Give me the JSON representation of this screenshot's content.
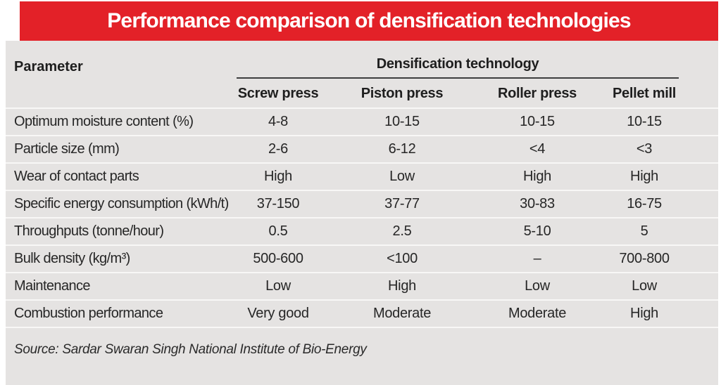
{
  "banner": {
    "title": "Performance comparison of densification technologies"
  },
  "table": {
    "param_header": "Parameter",
    "group_header": "Densification technology",
    "columns": [
      "Screw press",
      "Piston press",
      "Roller press",
      "Pellet mill"
    ],
    "rows": [
      {
        "param": "Optimum moisture content (%)",
        "values": [
          "4-8",
          "10-15",
          "10-15",
          "10-15"
        ]
      },
      {
        "param": "Particle size (mm)",
        "values": [
          "2-6",
          "6-12",
          "<4",
          "<3"
        ]
      },
      {
        "param": "Wear of contact parts",
        "values": [
          "High",
          "Low",
          "High",
          "High"
        ]
      },
      {
        "param": "Specific energy consumption (kWh/t)",
        "values": [
          "37-150",
          "37-77",
          "30-83",
          "16-75"
        ]
      },
      {
        "param": "Throughputs (tonne/hour)",
        "values": [
          "0.5",
          "2.5",
          "5-10",
          "5"
        ]
      },
      {
        "param": "Bulk density (kg/m³)",
        "values": [
          "500-600",
          "<100",
          "–",
          "700-800"
        ]
      },
      {
        "param": "Maintenance",
        "values": [
          "Low",
          "High",
          "Low",
          "Low"
        ]
      },
      {
        "param": "Combustion performance",
        "values": [
          "Very good",
          "Moderate",
          "Moderate",
          "High"
        ]
      }
    ]
  },
  "source": "Source: Sardar Swaran Singh National Institute of Bio-Energy",
  "colors": {
    "banner_red": "#e32128",
    "panel_gray": "#e5e3e2",
    "title_text": "#ffffff",
    "body_text": "#262626",
    "dark_rule": "#3e3e3e",
    "row_separator": "#f8f7f6"
  },
  "chart_data": {
    "type": "table",
    "title": "Performance comparison of densification technologies",
    "columns": [
      "Parameter",
      "Screw press",
      "Piston press",
      "Roller press",
      "Pellet mill"
    ],
    "rows": [
      [
        "Optimum moisture content (%)",
        "4-8",
        "10-15",
        "10-15",
        "10-15"
      ],
      [
        "Particle size (mm)",
        "2-6",
        "6-12",
        "<4",
        "<3"
      ],
      [
        "Wear of contact parts",
        "High",
        "Low",
        "High",
        "High"
      ],
      [
        "Specific energy consumption (kWh/t)",
        "37-150",
        "37-77",
        "30-83",
        "16-75"
      ],
      [
        "Throughputs (tonne/hour)",
        "0.5",
        "2.5",
        "5-10",
        "5"
      ],
      [
        "Bulk density (kg/m³)",
        "500-600",
        "<100",
        "–",
        "700-800"
      ],
      [
        "Maintenance",
        "Low",
        "High",
        "Low",
        "Low"
      ],
      [
        "Combustion performance",
        "Very good",
        "Moderate",
        "Moderate",
        "High"
      ]
    ],
    "group_header": "Densification technology",
    "source": "Source: Sardar Swaran Singh National Institute of Bio-Energy"
  }
}
